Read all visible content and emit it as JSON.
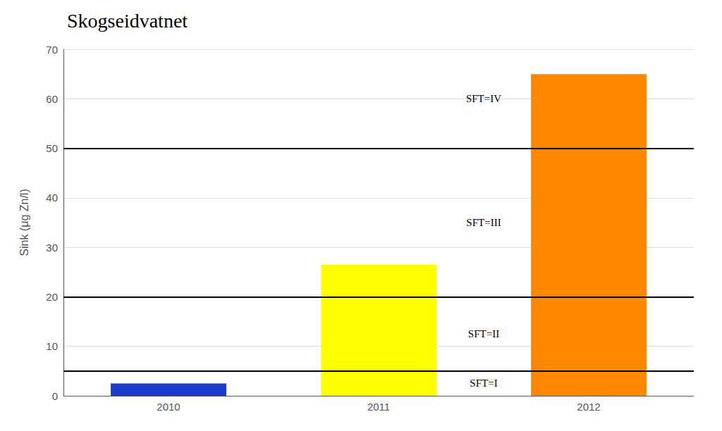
{
  "chart_data": {
    "type": "bar",
    "title": "Skogseidvatnet",
    "ylabel": "Sink (μg Zn/l)",
    "categories": [
      "2010",
      "2011",
      "2012"
    ],
    "values": [
      2.5,
      26.5,
      65.0
    ],
    "colors": [
      "#1a3acc",
      "#ffff00",
      "#ff8800"
    ],
    "ylim": [
      0,
      70
    ],
    "yticks": [
      0,
      10,
      20,
      30,
      40,
      50,
      60,
      70
    ],
    "grid": true,
    "thresholds": [
      5,
      20,
      50
    ],
    "annotations": [
      "SFT=I",
      "SFT=II",
      "SFT=III",
      "SFT=IV"
    ]
  }
}
